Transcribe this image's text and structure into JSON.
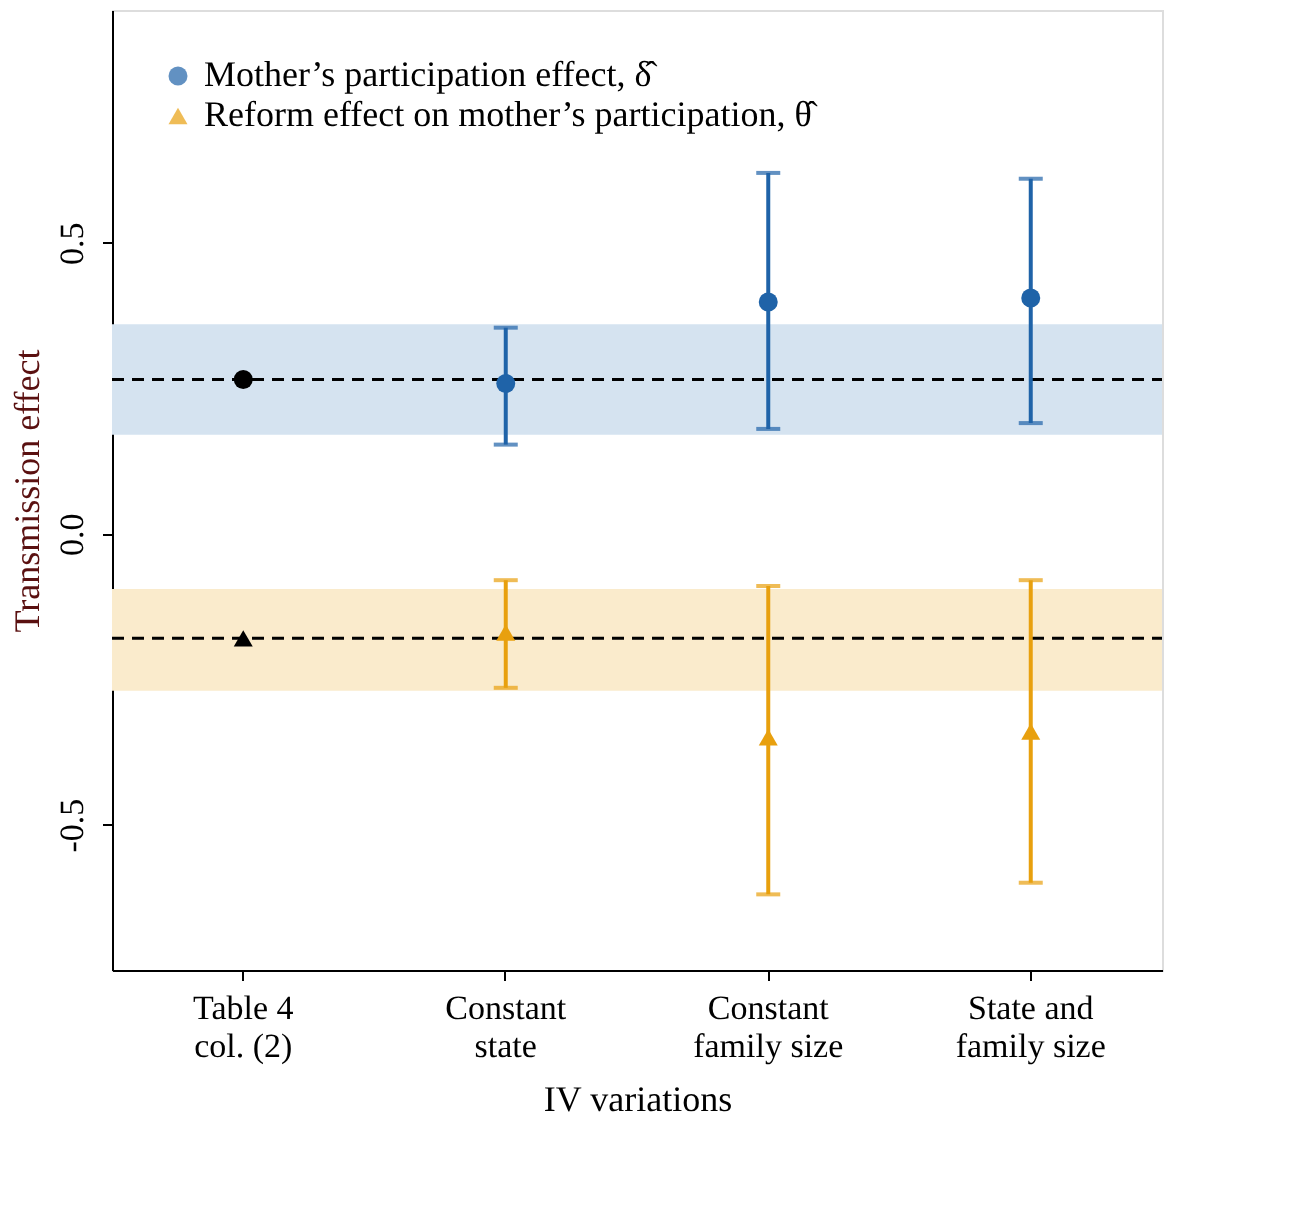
{
  "chart_data": {
    "type": "scatter",
    "xlabel": "IV variations",
    "ylabel": "Transmission effect",
    "categories": [
      "Table 4\ncol. (2)",
      "Constant\nstate",
      "Constant\nfamily size",
      "State and\nfamily size"
    ],
    "series": [
      {
        "name": "Mother’s participation effect, δ̂",
        "color": "#1f63a8",
        "marker": "circle",
        "colors": [
          "#000000",
          "#1f63a8",
          "#1f63a8",
          "#1f63a8"
        ],
        "values": [
          0.265,
          0.258,
          0.398,
          0.405
        ],
        "errors": [
          null,
          [
            0.153,
            0.354
          ],
          [
            0.18,
            0.62
          ],
          [
            0.19,
            0.61
          ]
        ]
      },
      {
        "name": "Reform effect on mother’s participation, θ̂",
        "color": "#e8a00e",
        "marker": "triangle",
        "colors": [
          "#000000",
          "#e8a00e",
          "#e8a00e",
          "#e8a00e"
        ],
        "values": [
          -0.18,
          -0.17,
          -0.35,
          -0.34
        ],
        "errors": [
          null,
          [
            -0.265,
            -0.08
          ],
          [
            -0.62,
            -0.09
          ],
          [
            -0.6,
            -0.08
          ]
        ]
      }
    ],
    "ylim": [
      -0.75,
      0.9
    ],
    "yticks": [
      {
        "value": -0.5,
        "label": "-0.5"
      },
      {
        "value": 0,
        "label": "0.0"
      },
      {
        "value": 0.5,
        "label": "0.5"
      }
    ],
    "bands": [
      {
        "axis": "y",
        "from": 0.17,
        "to": 0.36,
        "color": "#d5e3f0"
      },
      {
        "axis": "y",
        "from": -0.27,
        "to": -0.095,
        "color": "#faebcc"
      }
    ],
    "ref_lines": [
      {
        "axis": "y",
        "value": 0.265,
        "line_style": "dashed",
        "color": "#000000"
      },
      {
        "axis": "y",
        "value": -0.18,
        "line_style": "dashed",
        "color": "#000000"
      }
    ],
    "legend": "top left",
    "grid": false
  }
}
